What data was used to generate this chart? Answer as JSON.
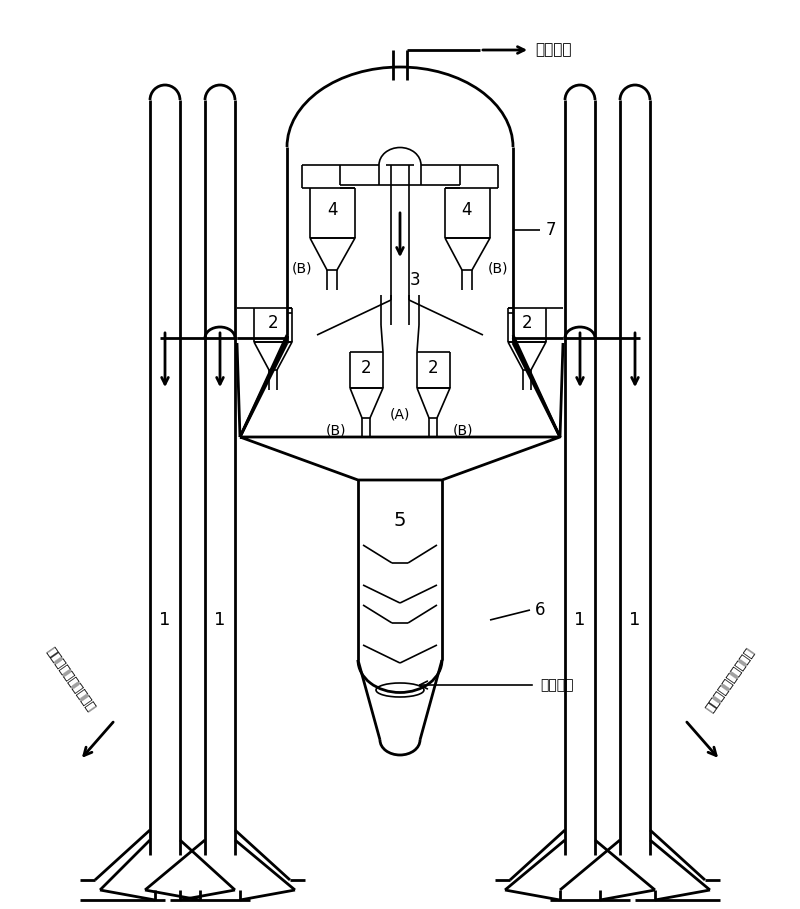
{
  "labels": {
    "reaction_gas": "反应油气",
    "stripping_steam": "汽提蒸汽",
    "left_text": "半再生催化剂到再生器",
    "right_text": "再生催化剂自再生器来"
  },
  "bg_color": "#ffffff",
  "lw_thin": 1.2,
  "lw_thick": 2.0
}
